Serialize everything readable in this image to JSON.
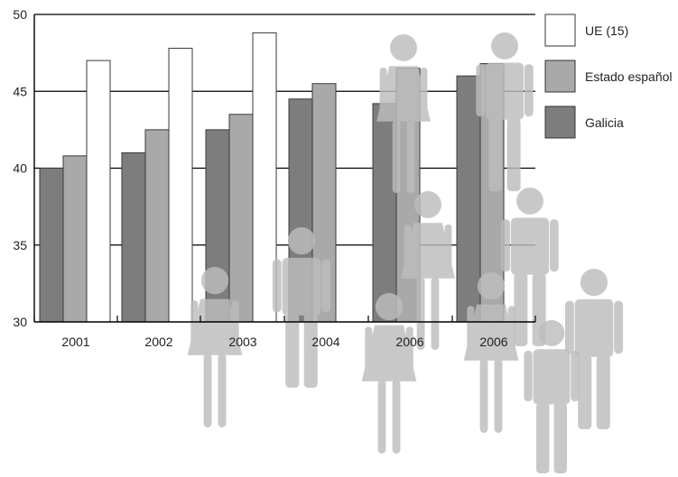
{
  "chart_data": {
    "type": "bar",
    "title": "",
    "xlabel": "",
    "ylabel": "",
    "categories": [
      "2001",
      "2002",
      "2003",
      "2004",
      "2006",
      "2006"
    ],
    "ylim": [
      30,
      50
    ],
    "yticks": [
      "30",
      "35",
      "40",
      "45",
      "50"
    ],
    "grid": true,
    "legend_position": "right",
    "series": [
      {
        "name": "Galicia",
        "color": "#7d7d7d",
        "values": [
          40.0,
          41.0,
          42.5,
          44.5,
          44.2,
          46.0
        ]
      },
      {
        "name": "Estado español",
        "color": "#a9a9a9",
        "values": [
          40.8,
          42.5,
          43.5,
          45.5,
          46.5,
          46.8
        ]
      },
      {
        "name": "UE (15)",
        "color": "#ffffff",
        "values": [
          47.0,
          47.8,
          48.8,
          null,
          null,
          null
        ]
      }
    ],
    "decoration": {
      "icon": "people-silhouettes-icon",
      "color": "#bdbdbd"
    }
  }
}
